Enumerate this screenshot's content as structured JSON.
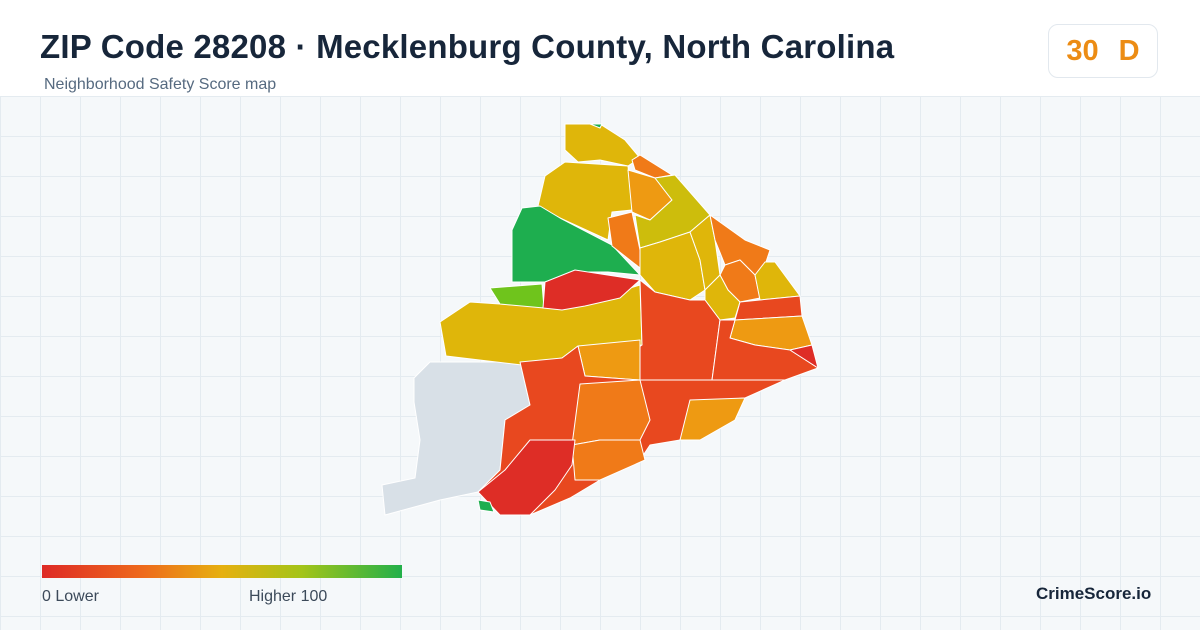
{
  "header": {
    "title": "ZIP Code 28208 · Mecklenburg County, North Carolina",
    "subtitle": "Neighborhood Safety Score map"
  },
  "score": {
    "value": "30",
    "grade": "D",
    "color": "#ec8c14"
  },
  "legend": {
    "min_label": "0  Lower",
    "max_label": "Higher  100",
    "colors": [
      "#de2a26",
      "#ee6a1c",
      "#e6b010",
      "#a4c418",
      "#22b04a"
    ]
  },
  "brand": "CrimeScore.io",
  "map": {
    "no_data_color": "#d8e0e7",
    "region_colors": {
      "red": "#de2d26",
      "red_orange": "#e8481f",
      "orange": "#f07a18",
      "dark_orange": "#ee9a12",
      "mustard": "#dfb60a",
      "olive": "#cdbd0c",
      "light_green": "#6fc41c",
      "green": "#1eae4f"
    }
  }
}
